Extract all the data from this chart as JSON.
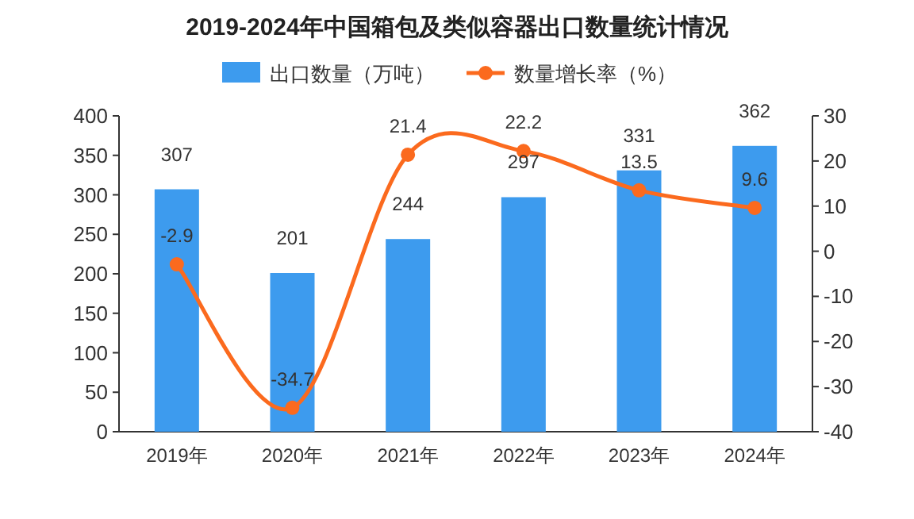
{
  "chart_data": {
    "type": "bar",
    "title": "2019-2024年中国箱包及类似容器出口数量统计情况",
    "categories": [
      "2019年",
      "2020年",
      "2021年",
      "2022年",
      "2023年",
      "2024年"
    ],
    "series": [
      {
        "name": "出口数量（万吨）",
        "color": "#3d9bee",
        "values": [
          307,
          201,
          244,
          297,
          331,
          362
        ]
      },
      {
        "name": "数量增长率（%）",
        "type": "line",
        "axis": "y2",
        "color": "#fb6a1e",
        "values": [
          -2.9,
          -34.7,
          21.4,
          22.2,
          13.5,
          9.6
        ]
      }
    ],
    "ylim": [
      0,
      400
    ],
    "yticks": [
      0,
      50,
      100,
      150,
      200,
      250,
      300,
      350,
      400
    ],
    "y2lim": [
      -40,
      30
    ],
    "y2ticks": [
      -40,
      -30,
      -20,
      -10,
      0,
      10,
      20,
      30
    ],
    "data_labels": true,
    "legend": "top",
    "grid": false,
    "marker": "circle"
  }
}
